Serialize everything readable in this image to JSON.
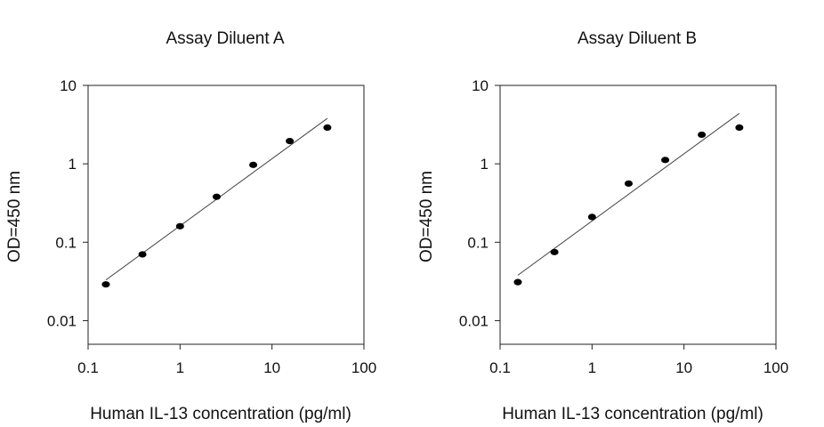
{
  "chart_data": [
    {
      "type": "scatter",
      "title": "Assay Diluent A",
      "xlabel": "Human IL-13 concentration (pg/ml)",
      "ylabel": "OD=450 nm",
      "xscale": "log",
      "yscale": "log",
      "xlim": [
        0.1,
        100
      ],
      "ylim": [
        0.005,
        10
      ],
      "xticks": [
        "0.1",
        "1",
        "10",
        "100"
      ],
      "yticks": [
        "0.01",
        "0.1",
        "1",
        "10"
      ],
      "grid": false,
      "legend": "none",
      "series": [
        {
          "x": [
            0.156,
            0.39,
            1,
            2.5,
            6.25,
            15.6,
            40
          ],
          "y": [
            0.029,
            0.07,
            0.16,
            0.38,
            0.97,
            1.95,
            2.9
          ]
        }
      ],
      "fit_line": {
        "x": [
          0.156,
          40
        ],
        "y": [
          0.033,
          3.8
        ]
      }
    },
    {
      "type": "scatter",
      "title": "Assay Diluent B",
      "xlabel": "Human IL-13 concentration (pg/ml)",
      "ylabel": "OD=450 nm",
      "xscale": "log",
      "yscale": "log",
      "xlim": [
        0.1,
        100
      ],
      "ylim": [
        0.005,
        10
      ],
      "xticks": [
        "0.1",
        "1",
        "10",
        "100"
      ],
      "yticks": [
        "0.01",
        "0.1",
        "1",
        "10"
      ],
      "grid": false,
      "legend": "none",
      "series": [
        {
          "x": [
            0.156,
            0.39,
            1,
            2.5,
            6.25,
            15.6,
            40
          ],
          "y": [
            0.031,
            0.075,
            0.21,
            0.56,
            1.12,
            2.35,
            2.9
          ]
        }
      ],
      "fit_line": {
        "x": [
          0.156,
          40
        ],
        "y": [
          0.038,
          4.4
        ]
      }
    }
  ]
}
